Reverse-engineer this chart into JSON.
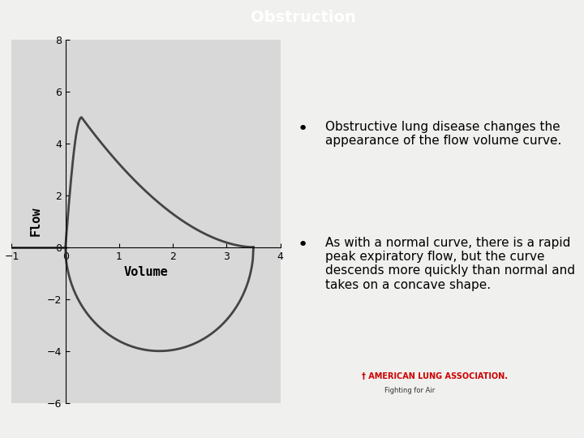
{
  "title": "Obstruction",
  "title_bg_color": "#e05060",
  "title_text_color": "#ffffff",
  "bg_color": "#f0f0f0",
  "plot_bg_color": "#d8d8d8",
  "bullet1": "Obstructive lung disease changes the appearance of the flow volume curve.",
  "bullet2": "As with a normal curve, there is a rapid peak expiratory flow, but the curve descends more quickly than normal and takes on a concave shape.",
  "ylabel": "Flow",
  "xlabel": "Volume",
  "xlim": [
    -1,
    4
  ],
  "ylim": [
    -6,
    8
  ],
  "xticks": [
    -1,
    0,
    1,
    2,
    3,
    4
  ],
  "yticks": [
    -6,
    -4,
    -2,
    0,
    2,
    4,
    6,
    8
  ],
  "curve_color": "#444444",
  "curve_lw": 2.0,
  "ala_text": "† AMERICAN LUNG ASSOCIATION.",
  "ala_subtext": "Fighting for Air"
}
